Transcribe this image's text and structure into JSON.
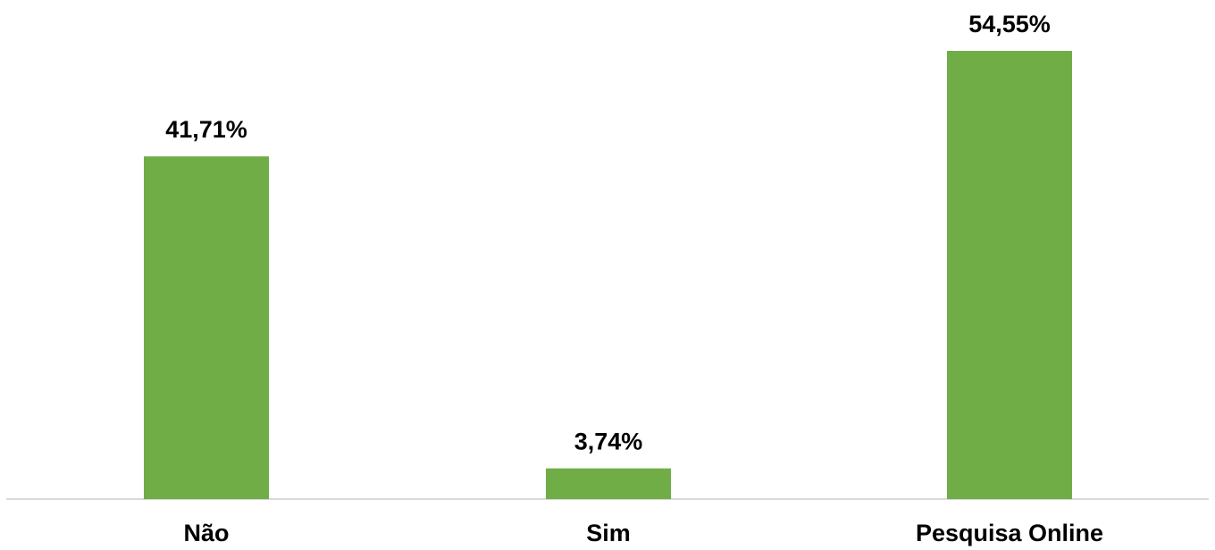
{
  "chart_data": {
    "type": "bar",
    "categories": [
      "Não",
      "Sim",
      "Pesquisa Online"
    ],
    "values": [
      41.71,
      3.74,
      54.55
    ],
    "data_labels": [
      "41,71%",
      "3,74%",
      "54,55%"
    ],
    "title": "",
    "xlabel": "",
    "ylabel": "",
    "ylim": [
      0,
      54.55
    ],
    "grid": false,
    "legend": "none",
    "bar_color": "#70AD47",
    "axis_color": "#D9D9D9"
  }
}
